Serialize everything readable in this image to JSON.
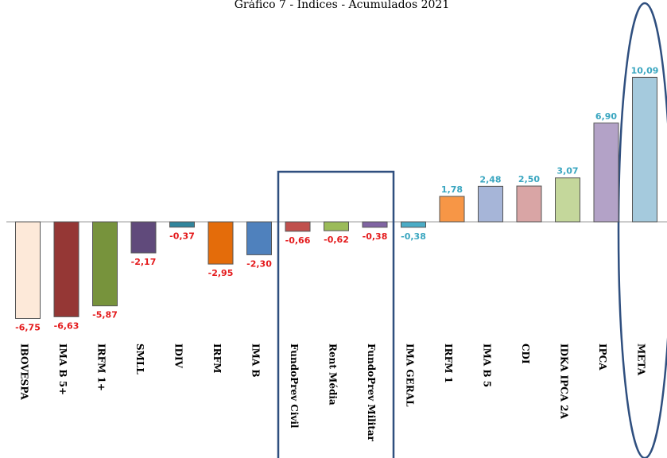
{
  "chart_data": {
    "type": "bar",
    "title": "Gráfico 7 - Índices - Acumulados 2021",
    "categories": [
      "IBOVESPA",
      "IMA B 5+",
      "IRFM 1+",
      "SMLL",
      "IDIV",
      "IRFM",
      "IMA B",
      "FundoPrev Civil",
      "Rent Média",
      "FundoPrev Militar",
      "IMA GERAL",
      "IRFM 1",
      "IMA B 5",
      "CDI",
      "IDKA IPCA 2A",
      "IPCA",
      "META"
    ],
    "values": [
      -6.75,
      -6.63,
      -5.87,
      -2.17,
      -0.37,
      -2.95,
      -2.3,
      -0.66,
      -0.62,
      -0.38,
      -0.38,
      1.78,
      2.48,
      2.5,
      3.07,
      6.9,
      10.09
    ],
    "value_labels": [
      "-6,75",
      "-6,63",
      "-5,87",
      "-2,17",
      "-0,37",
      "-2,95",
      "-2,30",
      "-0,66",
      "-0,62",
      "-0,38",
      "-0,38",
      "1,78",
      "2,48",
      "2,50",
      "3,07",
      "6,90",
      "10,09"
    ],
    "colors": [
      "#fde9d9",
      "#953735",
      "#77933c",
      "#604a7b",
      "#31859c",
      "#e46c0a",
      "#4f81bd",
      "#c0504d",
      "#9bbb59",
      "#8064a2",
      "#4bacc6",
      "#f79646",
      "#a6b5d8",
      "#d9a5a5",
      "#c4d79b",
      "#b3a2c7",
      "#a5cadd"
    ],
    "label_colors": [
      "#e41a1c",
      "#e41a1c",
      "#e41a1c",
      "#e41a1c",
      "#e41a1c",
      "#e41a1c",
      "#e41a1c",
      "#e41a1c",
      "#e41a1c",
      "#e41a1c",
      "#3aa6c0",
      "#3aa6c0",
      "#3aa6c0",
      "#3aa6c0",
      "#3aa6c0",
      "#3aa6c0",
      "#3aa6c0"
    ]
  }
}
